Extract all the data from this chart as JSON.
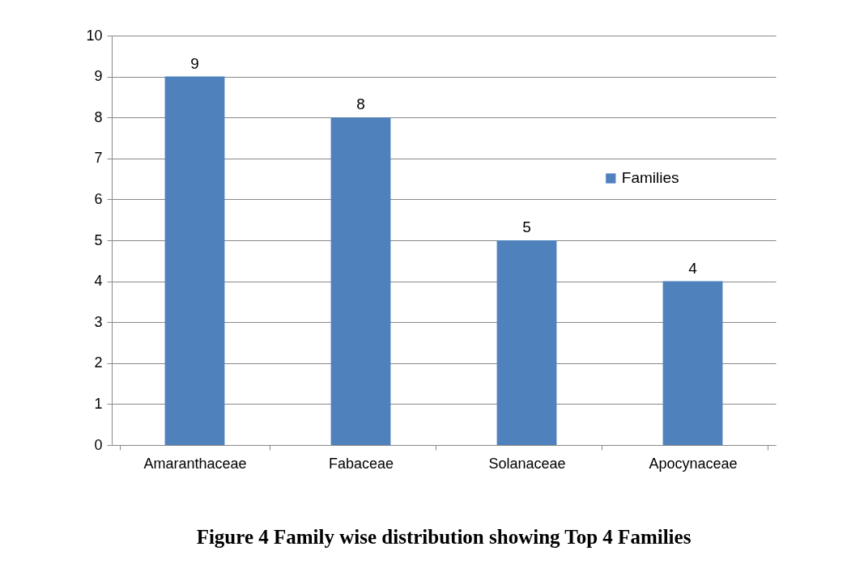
{
  "chart_data": {
    "type": "bar",
    "title": "Figure 4 Family wise distribution showing Top 4 Families",
    "categories": [
      "Amaranthaceae",
      "Fabaceae",
      "Solanaceae",
      "Apocynaceae"
    ],
    "series": [
      {
        "name": "Families",
        "color": "#4f81bd",
        "values": [
          9,
          8,
          5,
          4
        ]
      }
    ],
    "ylim": [
      0,
      10
    ],
    "yticks": [
      0,
      1,
      2,
      3,
      4,
      5,
      6,
      7,
      8,
      9,
      10
    ],
    "grid": "y",
    "legend": "right",
    "data_labels": true
  }
}
